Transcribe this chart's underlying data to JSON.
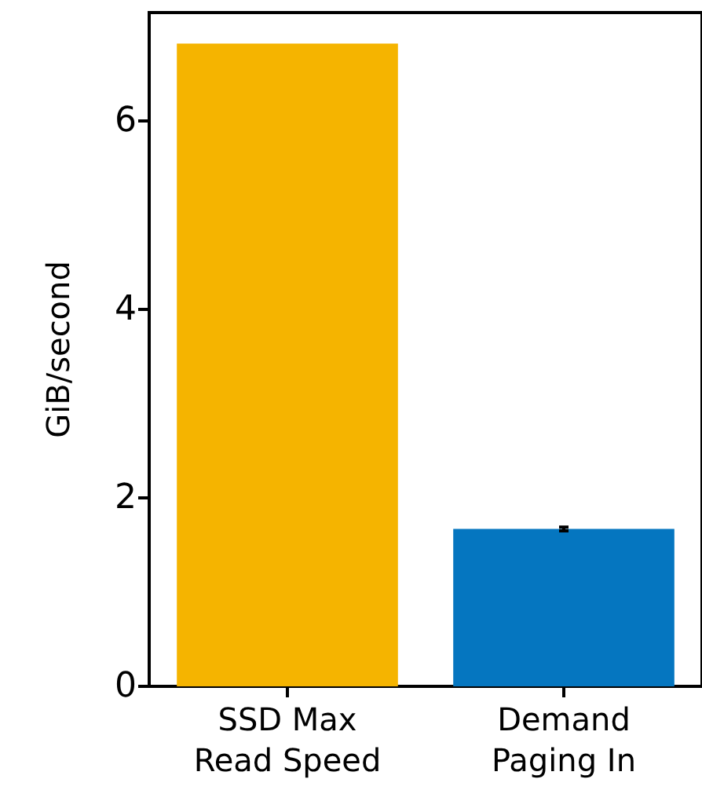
{
  "chart_data": {
    "type": "bar",
    "ylabel": "GiB/second",
    "categories": [
      "SSD Max\nRead Speed",
      "Demand\nPaging In"
    ],
    "values": [
      6.82,
      1.67
    ],
    "colors": [
      "#f5b400",
      "#0576c0"
    ],
    "errors": [
      null,
      0.02
    ],
    "ylim": [
      0,
      7.15
    ],
    "yticks": [
      0,
      2,
      4,
      6
    ],
    "grid": false
  }
}
